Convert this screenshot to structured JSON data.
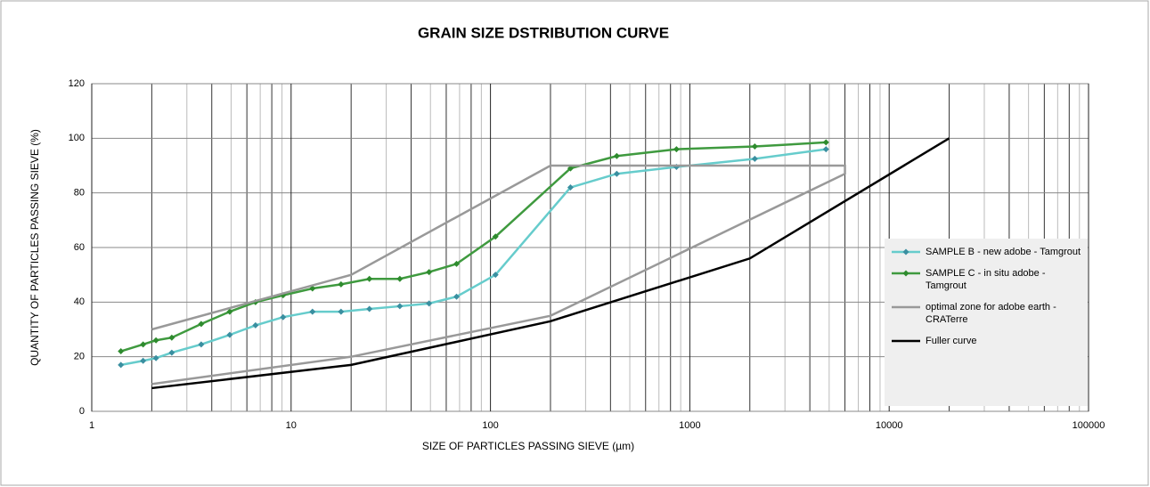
{
  "chart_data": {
    "type": "line",
    "title": "GRAIN SIZE DSTRIBUTION CURVE",
    "x_label": "SIZE OF PARTICLES PASSING SIEVE (µm)",
    "y_label": "QUANTITY OF PARTICLES PASSING SIEVE (%)",
    "xscale": "log",
    "xlim": [
      1,
      100000
    ],
    "xticks": [
      1,
      10,
      100,
      1000,
      10000,
      100000
    ],
    "ylim": [
      0,
      120
    ],
    "yticks": [
      0,
      20,
      40,
      60,
      80,
      100,
      120
    ],
    "grid": true,
    "legend": "right",
    "series": [
      {
        "name": "SAMPLE B - new adobe - Tamgrout",
        "color": "#66cccc",
        "marker_color": "#3a8fa0",
        "marker": "diamond",
        "x": [
          1.4,
          1.81,
          2.1,
          2.52,
          3.54,
          4.92,
          6.63,
          9.12,
          12.8,
          17.8,
          24.7,
          35.1,
          49.2,
          67.6,
          106,
          252,
          430,
          857,
          2118,
          4820
        ],
        "values": [
          17,
          18.5,
          19.5,
          21.5,
          24.5,
          28,
          31.5,
          34.5,
          36.5,
          36.5,
          37.5,
          38.5,
          39.5,
          42,
          50,
          82,
          87,
          89.5,
          92.5,
          96
        ]
      },
      {
        "name": "SAMPLE C - in situ adobe - Tamgrout",
        "color": "#3f9a3f",
        "marker_color": "#2e8b2e",
        "marker": "diamond",
        "x": [
          1.4,
          1.81,
          2.1,
          2.52,
          3.54,
          4.92,
          6.63,
          9.12,
          12.8,
          17.8,
          24.7,
          35.1,
          49.2,
          67.6,
          106,
          252,
          430,
          857,
          2118,
          4820
        ],
        "values": [
          22,
          24.5,
          26,
          27,
          32,
          36.5,
          40,
          42.5,
          45,
          46.5,
          48.5,
          48.5,
          51,
          54,
          64,
          89,
          93.5,
          96,
          97,
          98.5
        ]
      },
      {
        "name": "optimal zone for adobe earth - CRATerre",
        "color": "#999999",
        "x": [
          2,
          20,
          200,
          6000,
          6000,
          200,
          20,
          2
        ],
        "values": [
          30,
          50,
          90,
          90,
          87,
          35,
          20,
          10
        ]
      },
      {
        "name": "Fuller curve",
        "color": "#000000",
        "x": [
          2,
          20,
          200,
          2000,
          20000
        ],
        "values": [
          8.5,
          17,
          33,
          56,
          100
        ]
      }
    ]
  }
}
